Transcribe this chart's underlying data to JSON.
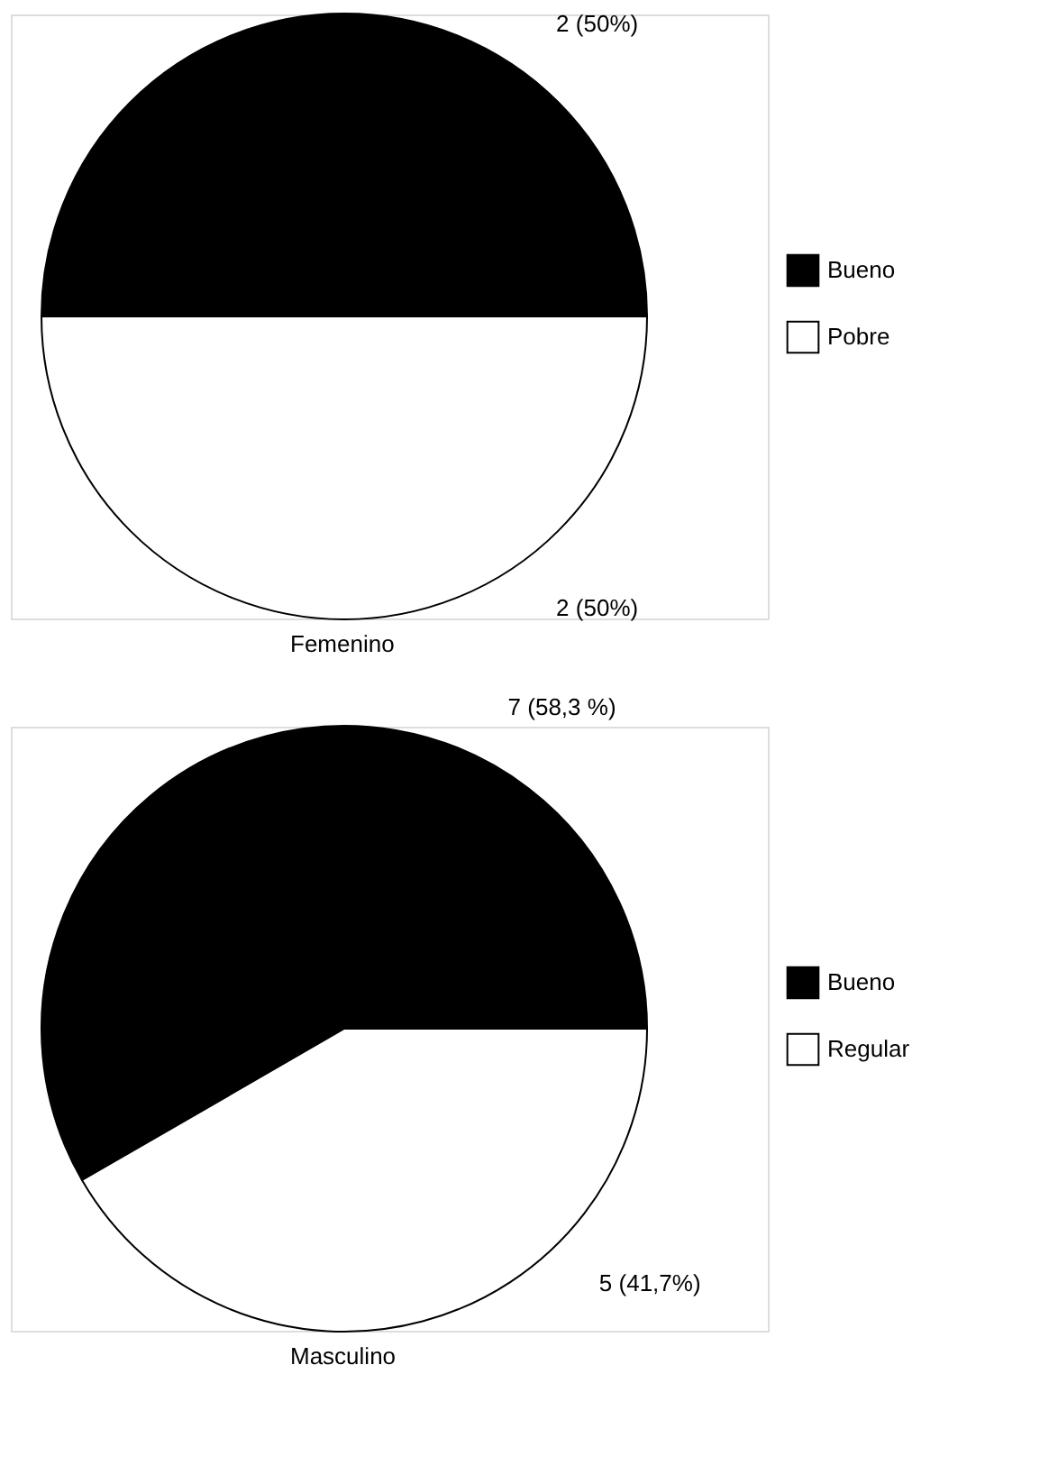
{
  "chart_data": [
    {
      "type": "pie",
      "title": "Femenino",
      "categories": [
        "Bueno",
        "Pobre"
      ],
      "values": [
        2,
        2
      ],
      "colors": [
        "#000000",
        "#ffffff"
      ],
      "value_labels": [
        "2  (50%)",
        "2  (50%)"
      ],
      "legend": "right"
    },
    {
      "type": "pie",
      "title": "Masculino",
      "categories": [
        "Bueno",
        "Regular"
      ],
      "values": [
        7,
        5
      ],
      "colors": [
        "#000000",
        "#ffffff"
      ],
      "value_labels": [
        "7 (58,3 %)",
        "5 (41,7%)"
      ],
      "legend": "right"
    }
  ]
}
